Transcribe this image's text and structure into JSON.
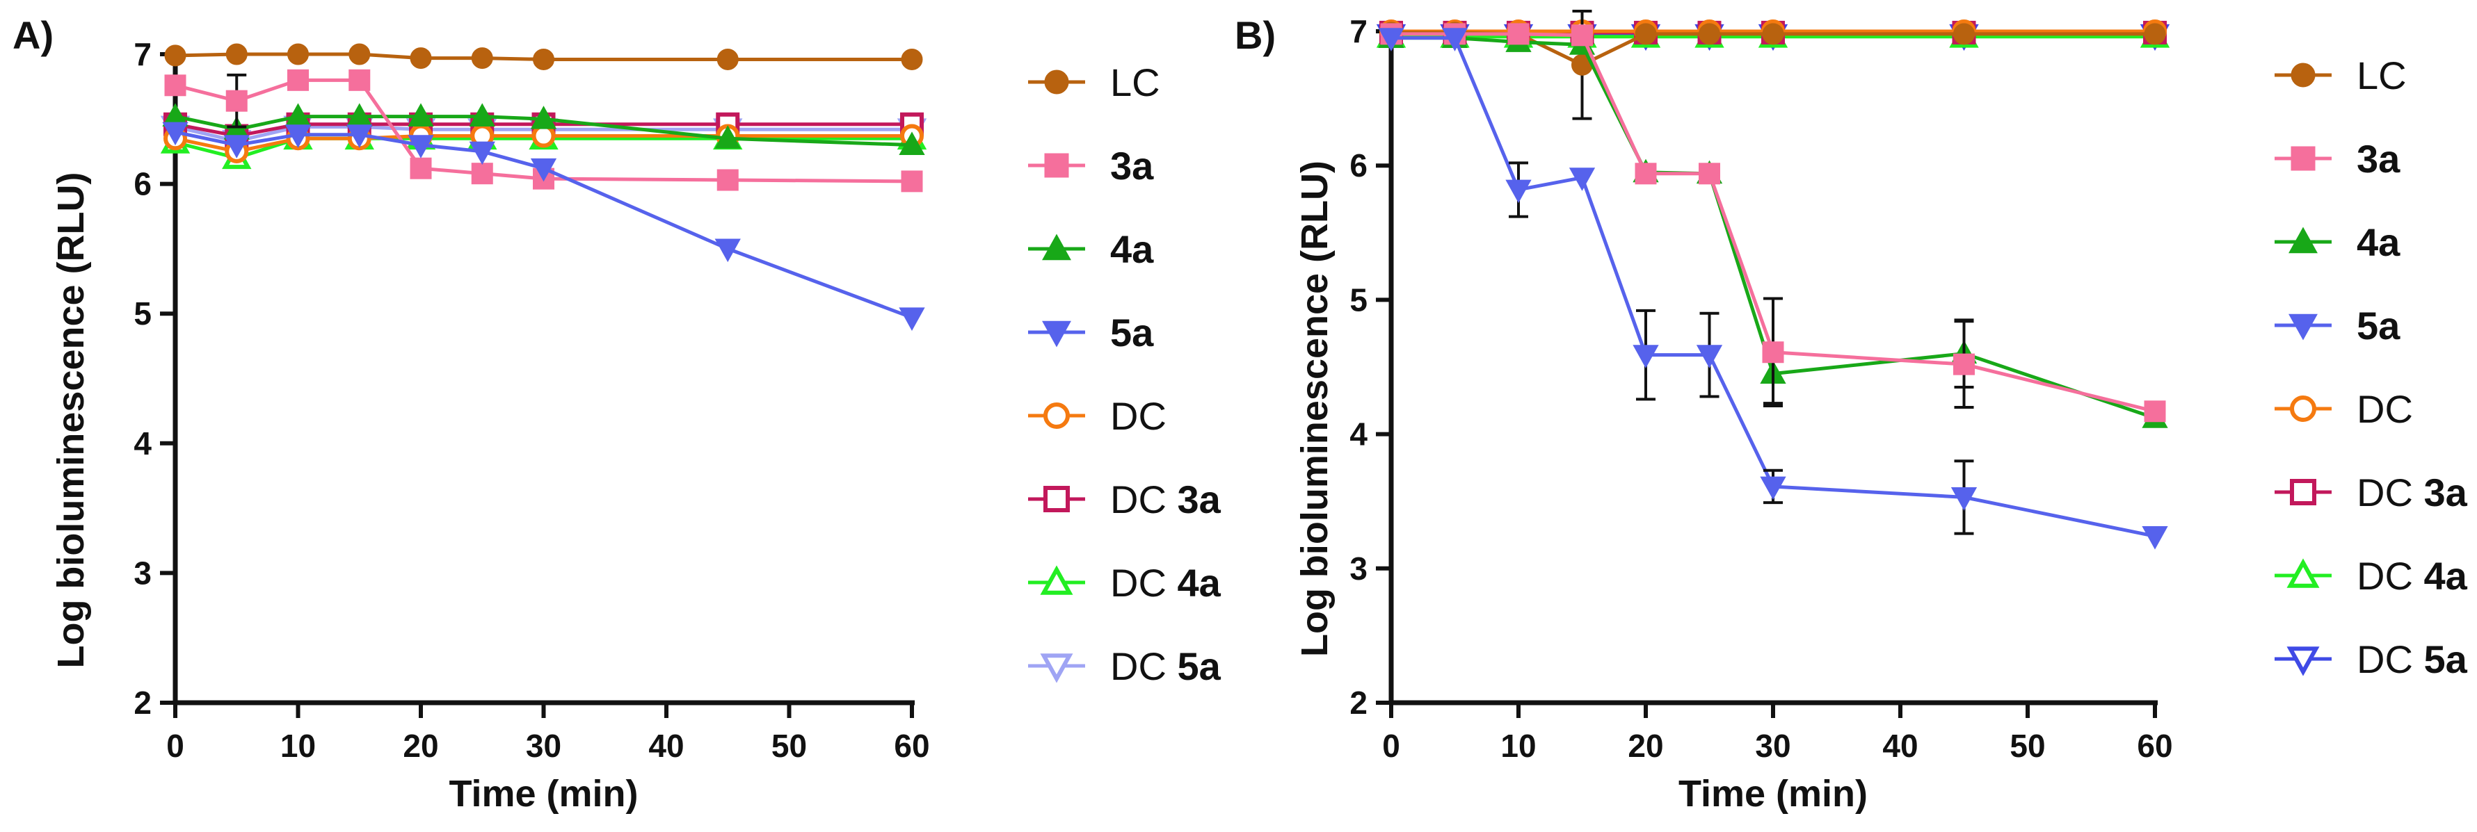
{
  "chart_data": [
    {
      "type": "line",
      "panel_label": "A)",
      "xlabel": "Time (min)",
      "ylabel": "Log bioluminescence (RLU)",
      "xlim": [
        0,
        60
      ],
      "ylim": [
        2,
        7
      ],
      "xticks": [
        0,
        10,
        20,
        30,
        40,
        50,
        60
      ],
      "yticks": [
        2,
        3,
        4,
        5,
        6,
        7
      ],
      "x": [
        0,
        5,
        10,
        15,
        20,
        25,
        30,
        45,
        60
      ],
      "series": [
        {
          "name": "LC",
          "key": "LC",
          "values": [
            6.99,
            7.0,
            7.0,
            7.0,
            6.97,
            6.97,
            6.96,
            6.96,
            6.96
          ],
          "err": [
            0,
            0,
            0,
            0,
            0,
            0,
            0,
            0,
            0
          ]
        },
        {
          "name": "3a",
          "key": "3a",
          "values": [
            6.76,
            6.64,
            6.8,
            6.8,
            6.12,
            6.08,
            6.04,
            6.03,
            6.02
          ],
          "err": [
            0,
            0.2,
            0,
            0,
            0,
            0,
            0,
            0,
            0
          ]
        },
        {
          "name": "4a",
          "key": "4a",
          "values": [
            6.52,
            6.42,
            6.52,
            6.52,
            6.52,
            6.52,
            6.5,
            6.35,
            6.3
          ],
          "err": [
            0,
            0,
            0,
            0,
            0,
            0,
            0,
            0,
            0
          ]
        },
        {
          "name": "5a",
          "key": "5a",
          "values": [
            6.4,
            6.3,
            6.38,
            6.38,
            6.3,
            6.25,
            6.12,
            5.5,
            4.97
          ],
          "err": [
            0,
            0,
            0,
            0,
            0,
            0,
            0,
            0,
            0
          ]
        },
        {
          "name": "DC",
          "key": "DC",
          "values": [
            6.35,
            6.25,
            6.35,
            6.35,
            6.37,
            6.37,
            6.37,
            6.37,
            6.37
          ],
          "err": [
            0,
            0,
            0,
            0,
            0,
            0,
            0,
            0,
            0
          ]
        },
        {
          "name": "DC 3a",
          "key": "DC3a",
          "values": [
            6.46,
            6.37,
            6.46,
            6.46,
            6.46,
            6.46,
            6.46,
            6.46,
            6.46
          ],
          "err": [
            0,
            0,
            0,
            0,
            0,
            0,
            0,
            0,
            0
          ]
        },
        {
          "name": "DC 4a",
          "key": "DC4a",
          "values": [
            6.32,
            6.2,
            6.35,
            6.35,
            6.35,
            6.35,
            6.35,
            6.35,
            6.35
          ],
          "err": [
            0,
            0,
            0,
            0,
            0,
            0,
            0,
            0,
            0
          ]
        },
        {
          "name": "DC 5a",
          "key": "DC5a",
          "values": [
            6.44,
            6.33,
            6.44,
            6.44,
            6.42,
            6.42,
            6.42,
            6.42,
            6.42
          ],
          "err": [
            0,
            0,
            0,
            0,
            0,
            0,
            0,
            0,
            0
          ]
        }
      ]
    },
    {
      "type": "line",
      "panel_label": "B)",
      "xlabel": "Time (min)",
      "ylabel": "Log bioluminescence (RLU)",
      "xlim": [
        0,
        60
      ],
      "ylim": [
        2,
        7
      ],
      "xticks": [
        0,
        10,
        20,
        30,
        40,
        50,
        60
      ],
      "yticks": [
        2,
        3,
        4,
        5,
        6,
        7
      ],
      "x": [
        0,
        5,
        10,
        15,
        20,
        25,
        30,
        45,
        60
      ],
      "series": [
        {
          "name": "LC",
          "key": "LC",
          "values": [
            6.99,
            6.99,
            6.98,
            6.75,
            6.98,
            6.98,
            6.98,
            6.98,
            6.98
          ],
          "err": [
            0,
            0,
            0,
            0.4,
            0,
            0,
            0,
            0,
            0
          ]
        },
        {
          "name": "3a",
          "key": "3a",
          "values": [
            6.98,
            6.98,
            6.98,
            6.97,
            5.94,
            5.94,
            4.61,
            4.52,
            4.17
          ],
          "err": [
            0,
            0,
            0,
            0,
            0,
            0,
            0.4,
            0.32,
            0
          ]
        },
        {
          "name": "4a",
          "key": "4a",
          "values": [
            6.95,
            6.95,
            6.92,
            6.9,
            5.95,
            5.94,
            4.45,
            4.6,
            4.12
          ],
          "err": [
            0,
            0,
            0,
            0,
            0,
            0,
            0.22,
            0.25,
            0
          ]
        },
        {
          "name": "5a",
          "key": "5a",
          "values": [
            6.95,
            6.95,
            5.82,
            5.91,
            4.59,
            4.59,
            3.61,
            3.53,
            3.24
          ],
          "err": [
            0,
            0,
            0.2,
            0,
            0.33,
            0.31,
            0.12,
            0.27,
            0
          ]
        },
        {
          "name": "DC",
          "key": "DC",
          "values": [
            7.0,
            7.0,
            7.0,
            7.0,
            7.0,
            7.0,
            7.0,
            7.0,
            7.0
          ],
          "err": [
            0,
            0,
            0,
            0,
            0,
            0,
            0,
            0,
            0
          ]
        },
        {
          "name": "DC 3a",
          "key": "DC3a",
          "values": [
            6.99,
            6.99,
            6.99,
            6.99,
            6.99,
            6.99,
            6.99,
            6.99,
            6.99
          ],
          "err": [
            0,
            0,
            0,
            0,
            0,
            0,
            0,
            0,
            0
          ]
        },
        {
          "name": "DC 4a",
          "key": "DC4a",
          "values": [
            6.96,
            6.96,
            6.96,
            6.96,
            6.96,
            6.96,
            6.96,
            6.96,
            6.96
          ],
          "err": [
            0,
            0,
            0,
            0,
            0,
            0,
            0,
            0,
            0
          ]
        },
        {
          "name": "DC 5a",
          "key": "DC5a",
          "values": [
            6.97,
            6.97,
            6.97,
            6.97,
            6.97,
            6.97,
            6.97,
            6.97,
            6.97
          ],
          "err": [
            0,
            0,
            0,
            0,
            0,
            0,
            0,
            0,
            0
          ]
        }
      ]
    }
  ],
  "legends": [
    {
      "items": [
        {
          "key": "LC",
          "prefix": "LC",
          "bold": ""
        },
        {
          "key": "3a",
          "prefix": "",
          "bold": "3a"
        },
        {
          "key": "4a",
          "prefix": "",
          "bold": "4a"
        },
        {
          "key": "5a",
          "prefix": "",
          "bold": "5a"
        },
        {
          "key": "DC",
          "prefix": "DC",
          "bold": ""
        },
        {
          "key": "DC3a",
          "prefix": "DC ",
          "bold": "3a"
        },
        {
          "key": "DC4a",
          "prefix": "DC ",
          "bold": "4a"
        },
        {
          "key": "DC5a",
          "prefix": "DC ",
          "bold": "5a"
        }
      ]
    },
    {
      "items": [
        {
          "key": "LC",
          "prefix": "LC",
          "bold": ""
        },
        {
          "key": "3a",
          "prefix": "",
          "bold": "3a"
        },
        {
          "key": "4a",
          "prefix": "",
          "bold": "4a"
        },
        {
          "key": "5a",
          "prefix": "",
          "bold": "5a"
        },
        {
          "key": "DC",
          "prefix": "DC",
          "bold": ""
        },
        {
          "key": "DC3a",
          "prefix": "DC ",
          "bold": "3a"
        },
        {
          "key": "DC4a",
          "prefix": "DC ",
          "bold": "4a"
        },
        {
          "key": "DC5a",
          "prefix": "DC ",
          "bold": "5a"
        }
      ]
    }
  ],
  "styles": {
    "LC": {
      "color": "#b8620f",
      "marker": "circle",
      "filled": true
    },
    "3a": {
      "color": "#f56f9c",
      "marker": "square",
      "filled": true
    },
    "4a": {
      "color": "#18a818",
      "marker": "triangle",
      "filled": true
    },
    "5a": {
      "color": "#5662ec",
      "marker": "tri-down",
      "filled": true
    },
    "DC": {
      "color": "#f57a10",
      "marker": "circle",
      "filled": false
    },
    "DC3a": {
      "color": "#c2185b",
      "marker": "square",
      "filled": false
    },
    "DC4a": {
      "color": "#22ee22",
      "marker": "triangle",
      "filled": false
    },
    "DC5a": {
      "color": "#9fa4f4",
      "marker": "tri-down",
      "filled": false
    },
    "DC5aB": {
      "color": "#3f4ae6",
      "marker": "tri-down",
      "filled": false
    }
  }
}
